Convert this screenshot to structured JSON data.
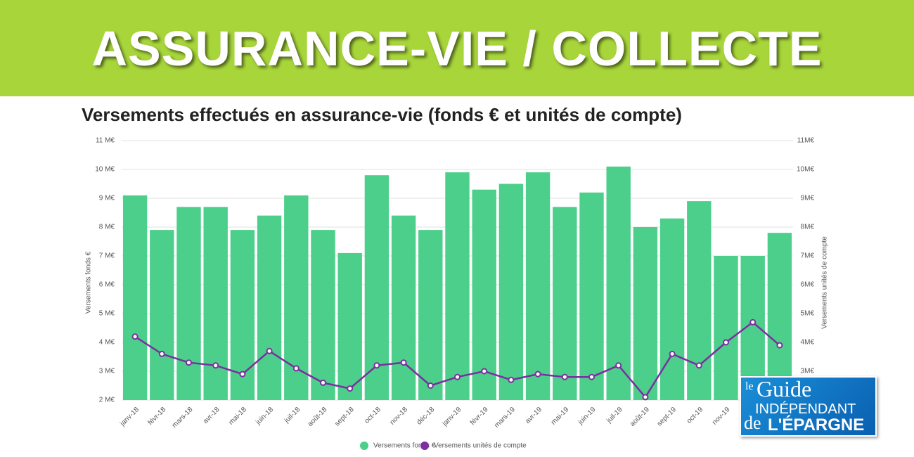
{
  "banner": {
    "title": "ASSURANCE-VIE / COLLECTE"
  },
  "logo": {
    "line1": "le",
    "line2": "Guide",
    "line3": "INDÉPENDANT",
    "line4": "de",
    "line5": "L'ÉPARGNE"
  },
  "chart_data": {
    "type": "bar",
    "title": "Versements effectués en assurance-vie (fonds € et unités de compte)",
    "y_label": "Versements fonds €",
    "y2_label": "Versements unités de compte",
    "categories": [
      "janv-18",
      "févr-18",
      "mars-18",
      "avr-18",
      "mai-18",
      "juin-18",
      "juil-18",
      "août-18",
      "sept-18",
      "oct-18",
      "nov-18",
      "déc-18",
      "janv-19",
      "févr-19",
      "mars-19",
      "avr-19",
      "mai-19",
      "juin-19",
      "juil-19",
      "août-19",
      "sept-19",
      "oct-19",
      "nov-19",
      null,
      null
    ],
    "series": [
      {
        "name": "Versements fonds €",
        "type": "bar",
        "color": "#4ccf8a",
        "values": [
          9.1,
          7.9,
          8.7,
          8.7,
          7.9,
          8.4,
          9.1,
          7.9,
          7.1,
          9.8,
          8.4,
          7.9,
          9.9,
          9.3,
          9.5,
          9.9,
          8.7,
          9.2,
          10.1,
          8.0,
          8.3,
          8.9,
          7.0,
          7.0,
          7.8
        ]
      },
      {
        "name": "Versements unités de compte",
        "type": "line",
        "axis": "y2",
        "color": "#7b2fa0",
        "values": [
          4.2,
          3.6,
          3.3,
          3.2,
          2.9,
          3.7,
          3.1,
          2.6,
          2.4,
          3.2,
          3.3,
          2.5,
          2.8,
          3.0,
          2.7,
          2.9,
          2.8,
          2.8,
          3.2,
          2.1,
          3.6,
          3.2,
          4.0,
          4.7,
          3.9
        ]
      }
    ],
    "ylim": [
      2,
      11
    ],
    "yticks": [
      {
        "value": 2,
        "label": "2 M€"
      },
      {
        "value": 3,
        "label": "3 M€"
      },
      {
        "value": 4,
        "label": "4 M€"
      },
      {
        "value": 5,
        "label": "5 M€"
      },
      {
        "value": 6,
        "label": "6 M€"
      },
      {
        "value": 7,
        "label": "7 M€"
      },
      {
        "value": 8,
        "label": "8 M€"
      },
      {
        "value": 9,
        "label": "9 M€"
      },
      {
        "value": 10,
        "label": "10 M€"
      },
      {
        "value": 11,
        "label": "11 M€"
      }
    ],
    "y2lim": [
      2,
      11
    ],
    "y2ticks": [
      {
        "value": 3,
        "label": "3M€"
      },
      {
        "value": 4,
        "label": "4M€"
      },
      {
        "value": 5,
        "label": "5M€"
      },
      {
        "value": 6,
        "label": "6M€"
      },
      {
        "value": 7,
        "label": "7M€"
      },
      {
        "value": 8,
        "label": "8M€"
      },
      {
        "value": 9,
        "label": "9M€"
      },
      {
        "value": 10,
        "label": "10M€"
      },
      {
        "value": 11,
        "label": "11M€"
      }
    ],
    "grid": true,
    "legend": "bottom"
  }
}
